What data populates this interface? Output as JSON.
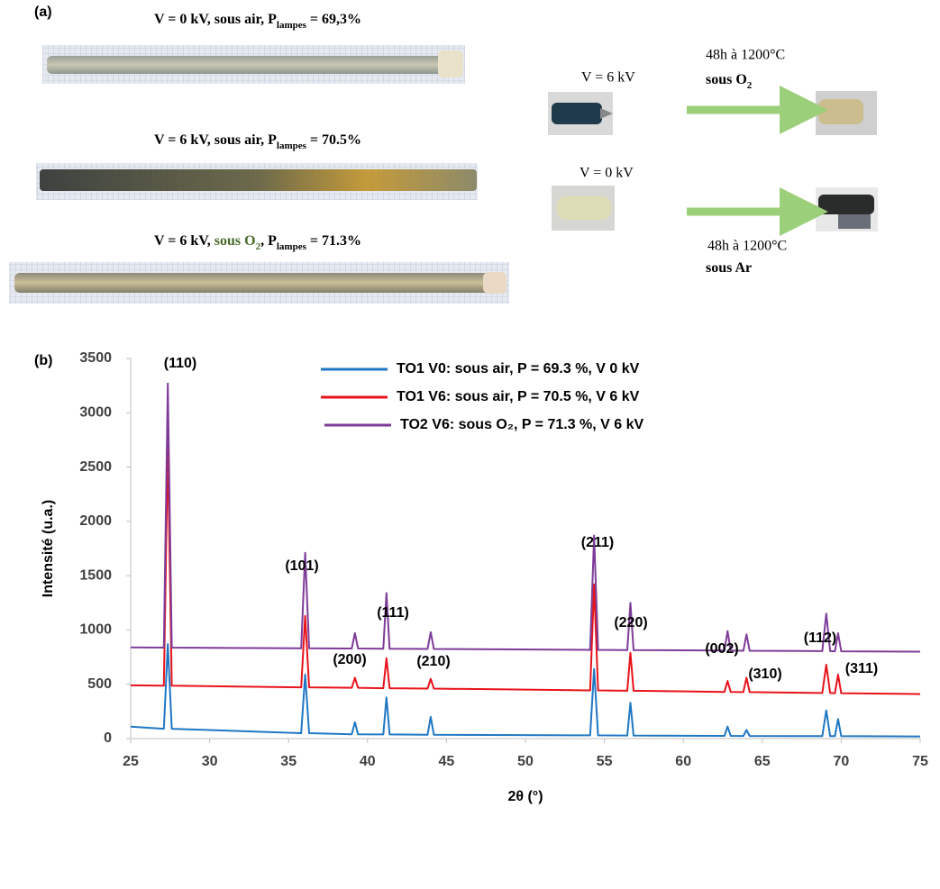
{
  "figure": {
    "panel_label": "(a)",
    "captions": [
      [
        {
          "text": "V = 0 kV, sous air, P"
        },
        {
          "text": "lampes",
          "sub": true
        },
        {
          "text": " = 69,3%"
        }
      ],
      [
        {
          "text": "V = 6 kV, sous air, P"
        },
        {
          "text": "lampes",
          "sub": true
        },
        {
          "text": " = 70.5%"
        }
      ],
      [
        {
          "text": "V = 6 kV, "
        },
        {
          "text": "sous O",
          "color": "#4a6b2a"
        },
        {
          "text": "2",
          "sub": true,
          "color": "#4a6b2a"
        },
        {
          "text": ", P"
        },
        {
          "text": "lampes",
          "sub": true
        },
        {
          "text": " = 71.3%"
        }
      ]
    ],
    "treatments": [
      {
        "voltage": "V = 6 kV",
        "condition": "48h à 1200°C",
        "atmosphere": [
          {
            "text": "sous O"
          },
          {
            "text": "2",
            "sub": true
          }
        ]
      },
      {
        "voltage": "V = 0 kV",
        "condition": "48h à 1200°C",
        "atmosphere": [
          {
            "text": "sous Ar"
          }
        ]
      }
    ]
  },
  "chart_data": {
    "type": "line",
    "panel_label": "(b)",
    "x_label": "2θ (°)",
    "y_label": "Intensité (u.a.)",
    "xlim": [
      25,
      75
    ],
    "xticks": [
      25,
      30,
      35,
      40,
      45,
      50,
      55,
      60,
      65,
      70,
      75
    ],
    "ylim": [
      0,
      3500
    ],
    "yticks": [
      0,
      500,
      1000,
      1500,
      2000,
      2500,
      3000,
      3500
    ],
    "grid": false,
    "legend": "top",
    "x": [
      25,
      27.1,
      27.35,
      27.6,
      35.8,
      36.05,
      36.3,
      39.0,
      39.2,
      39.4,
      41.0,
      41.2,
      41.4,
      43.8,
      44.0,
      44.2,
      54.1,
      54.35,
      54.6,
      56.45,
      56.65,
      56.85,
      62.6,
      62.8,
      63.0,
      63.8,
      64.0,
      64.2,
      68.8,
      69.05,
      69.3,
      69.6,
      69.8,
      70.0,
      75
    ],
    "series": [
      {
        "name": "TO1 V0: sous air, P = 69.3 %, V 0 kV",
        "color": "#1f77c4",
        "values": [
          110,
          90,
          870,
          90,
          50,
          590,
          50,
          40,
          150,
          40,
          38,
          380,
          38,
          35,
          200,
          35,
          30,
          640,
          30,
          28,
          330,
          28,
          25,
          110,
          25,
          24,
          80,
          24,
          22,
          260,
          22,
          22,
          180,
          22,
          20
        ]
      },
      {
        "name": "TO1 V6: sous air, P = 70.5 %, V 6 kV",
        "color": "#e8131b",
        "values": [
          490,
          487,
          2690,
          487,
          472,
          1130,
          472,
          468,
          560,
          468,
          464,
          740,
          464,
          460,
          550,
          460,
          444,
          1420,
          444,
          440,
          790,
          440,
          430,
          530,
          430,
          428,
          560,
          428,
          420,
          680,
          420,
          418,
          590,
          418,
          410
        ]
      },
      {
        "name": "TO2 V6: sous O₂, P = 71.3 %, V 6 kV",
        "color": "#7d3c98",
        "values": [
          840,
          838,
          3270,
          838,
          831,
          1710,
          831,
          829,
          970,
          829,
          827,
          1340,
          827,
          825,
          980,
          825,
          817,
          1870,
          817,
          815,
          1250,
          815,
          810,
          990,
          810,
          809,
          960,
          809,
          805,
          1150,
          805,
          804,
          970,
          804,
          800
        ]
      }
    ],
    "annotations": [
      "(110)",
      "(101)",
      "(200)",
      "(111)",
      "(210)",
      "(211)",
      "(220)",
      "(002)",
      "(310)",
      "(112)",
      "(311)"
    ]
  }
}
